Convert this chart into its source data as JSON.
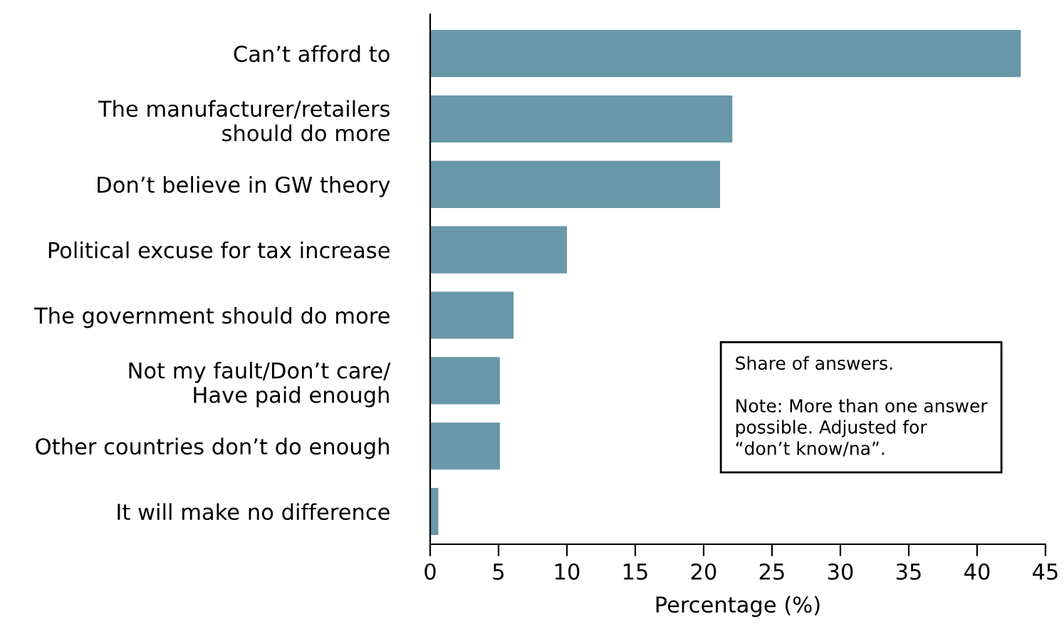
{
  "chart_data": {
    "type": "bar",
    "orientation": "horizontal",
    "categories": [
      "Can’t afford to",
      "The manufacturer/retailers\nshould do more",
      "Don’t believe in GW theory",
      "Political excuse for tax increase",
      "The government should do more",
      "Not my fault/Don’t care/\nHave paid enough",
      "Other countries don’t do enough",
      "It will make no difference"
    ],
    "values": [
      43.2,
      22.1,
      21.2,
      10,
      6.1,
      5.1,
      5.1,
      0.6
    ],
    "color": "#6a97aa",
    "xlabel": "Percentage (%)",
    "xlim": [
      0,
      45
    ],
    "xticks": [
      0,
      5,
      10,
      15,
      20,
      25,
      30,
      35,
      40,
      45
    ],
    "grid": false,
    "annotations": [
      "Share of answers.\n\nNote: More than one answer\npossible. Adjusted for\n“don’t know/na”."
    ]
  }
}
